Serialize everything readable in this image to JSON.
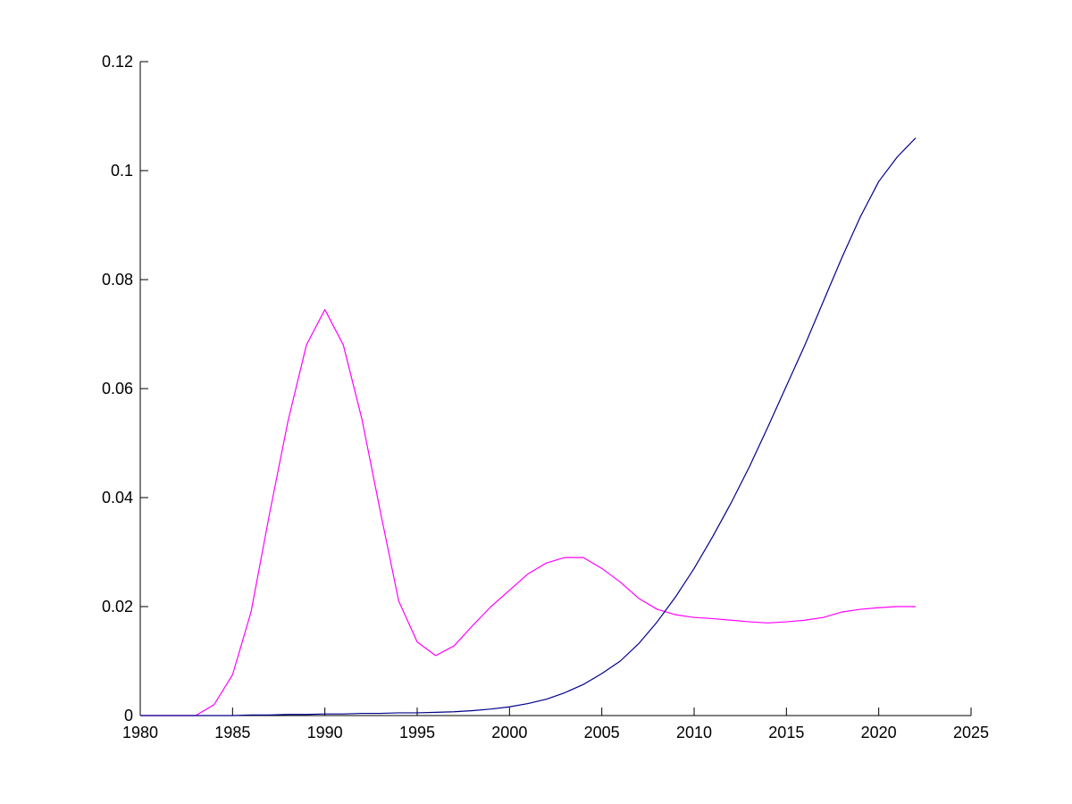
{
  "chart_data": {
    "type": "line",
    "title": "",
    "xlabel": "",
    "ylabel": "",
    "xlim": [
      1980,
      2025
    ],
    "ylim": [
      0,
      0.12
    ],
    "xticks": [
      1980,
      1985,
      1990,
      1995,
      2000,
      2005,
      2010,
      2015,
      2020,
      2025
    ],
    "xtick_labels": [
      "1980",
      "1985",
      "1990",
      "1995",
      "2000",
      "2005",
      "2010",
      "2015",
      "2020",
      "2025"
    ],
    "yticks": [
      0,
      0.02,
      0.04,
      0.06,
      0.08,
      0.1,
      0.12
    ],
    "ytick_labels": [
      "0",
      "0.02",
      "0.04",
      "0.06",
      "0.08",
      "0.1",
      "0.12"
    ],
    "grid": false,
    "legend": "none",
    "series": [
      {
        "color": "#ff00ff",
        "x": [
          1980,
          1981,
          1982,
          1983,
          1984,
          1985,
          1986,
          1987,
          1988,
          1989,
          1990,
          1991,
          1992,
          1993,
          1994,
          1995,
          1996,
          1997,
          1998,
          1999,
          2000,
          2001,
          2002,
          2003,
          2004,
          2005,
          2006,
          2007,
          2008,
          2009,
          2010,
          2011,
          2012,
          2013,
          2014,
          2015,
          2016,
          2017,
          2018,
          2019,
          2020,
          2021,
          2022
        ],
        "y": [
          0,
          0,
          0,
          0,
          0.002,
          0.0075,
          0.019,
          0.037,
          0.054,
          0.068,
          0.0745,
          0.068,
          0.0545,
          0.0375,
          0.021,
          0.0135,
          0.011,
          0.0128,
          0.0165,
          0.02,
          0.023,
          0.026,
          0.028,
          0.029,
          0.029,
          0.027,
          0.0245,
          0.0215,
          0.0195,
          0.0185,
          0.018,
          0.0178,
          0.0175,
          0.0172,
          0.017,
          0.0172,
          0.0175,
          0.018,
          0.019,
          0.0195,
          0.0198,
          0.02,
          0.02
        ]
      },
      {
        "color": "#00008b",
        "x": [
          1980,
          1981,
          1982,
          1983,
          1984,
          1985,
          1986,
          1987,
          1988,
          1989,
          1990,
          1991,
          1992,
          1993,
          1994,
          1995,
          1996,
          1997,
          1998,
          1999,
          2000,
          2001,
          2002,
          2003,
          2004,
          2005,
          2006,
          2007,
          2008,
          2009,
          2010,
          2011,
          2012,
          2013,
          2014,
          2015,
          2016,
          2017,
          2018,
          2019,
          2020,
          2021,
          2022
        ],
        "y": [
          0,
          0,
          0,
          0,
          0,
          0,
          0.0001,
          0.0001,
          0.0002,
          0.0002,
          0.0003,
          0.0003,
          0.0004,
          0.0004,
          0.0005,
          0.0005,
          0.0006,
          0.0007,
          0.0009,
          0.0012,
          0.0016,
          0.0022,
          0.003,
          0.0042,
          0.0057,
          0.0077,
          0.01,
          0.0132,
          0.0172,
          0.0218,
          0.027,
          0.0328,
          0.039,
          0.0457,
          0.053,
          0.0605,
          0.068,
          0.076,
          0.084,
          0.0915,
          0.098,
          0.1025,
          0.106
        ]
      }
    ]
  }
}
